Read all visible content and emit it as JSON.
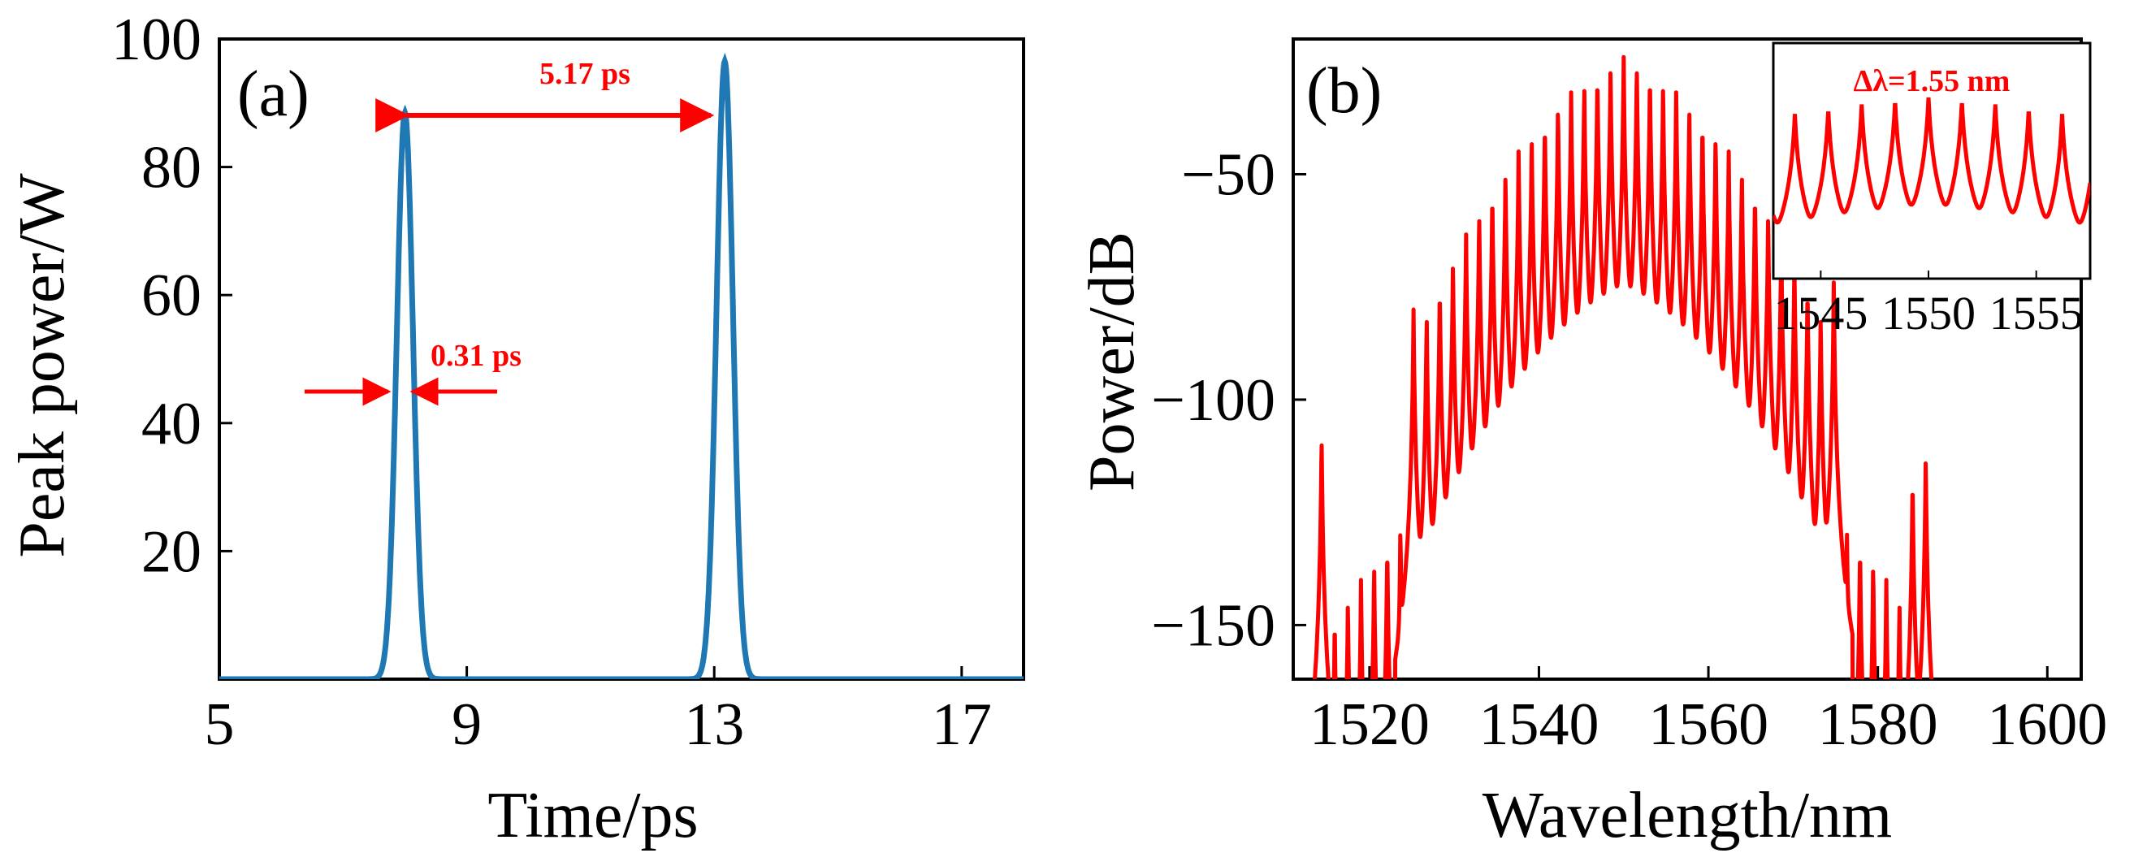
{
  "colors": {
    "pulse": "#1f77b4",
    "spectrum": "#ff0000",
    "annotation": "#ff0000",
    "axes": "#000000"
  },
  "chart_data": [
    {
      "type": "line",
      "panel_label": "(a)",
      "xlabel": "Time/ps",
      "ylabel": "Peak power/W",
      "xlim": [
        5,
        18
      ],
      "ylim": [
        0,
        100
      ],
      "x_ticks": [
        "5",
        "9",
        "13",
        "17"
      ],
      "x_tick_values": [
        5,
        9,
        13,
        17
      ],
      "y_ticks": [
        "20",
        "40",
        "60",
        "80",
        "100"
      ],
      "y_tick_values": [
        20,
        40,
        60,
        80,
        100
      ],
      "series": [
        {
          "peaks": [
            {
              "t": 8.0,
              "power": 88.5
            },
            {
              "t": 13.17,
              "power": 96.5
            }
          ],
          "fwhm_ps": 0.31
        }
      ],
      "annotations": {
        "separation": "5.17 ps",
        "width": "0.31 ps"
      }
    },
    {
      "type": "line",
      "panel_label": "(b)",
      "xlabel": "Wavelength/nm",
      "ylabel": "Power/dB",
      "xlim": [
        1511,
        1604
      ],
      "ylim": [
        -162,
        -20
      ],
      "x_ticks": [
        "1520",
        "1540",
        "1560",
        "1580",
        "1600"
      ],
      "x_tick_values": [
        1520,
        1540,
        1560,
        1580,
        1600
      ],
      "y_ticks": [
        "−50",
        "−100",
        "−150"
      ],
      "y_tick_values": [
        -50,
        -100,
        -150
      ],
      "series": [
        {
          "center_nm": 1550,
          "line_spacing_nm": 1.55,
          "peak_dB": -24
        }
      ],
      "inset": {
        "title": "Δλ=1.55 nm",
        "x_ticks": [
          "1545",
          "1550",
          "1555"
        ],
        "x_tick_values": [
          1545,
          1550,
          1555
        ],
        "xlim": [
          1542.8,
          1557.5
        ]
      }
    }
  ]
}
